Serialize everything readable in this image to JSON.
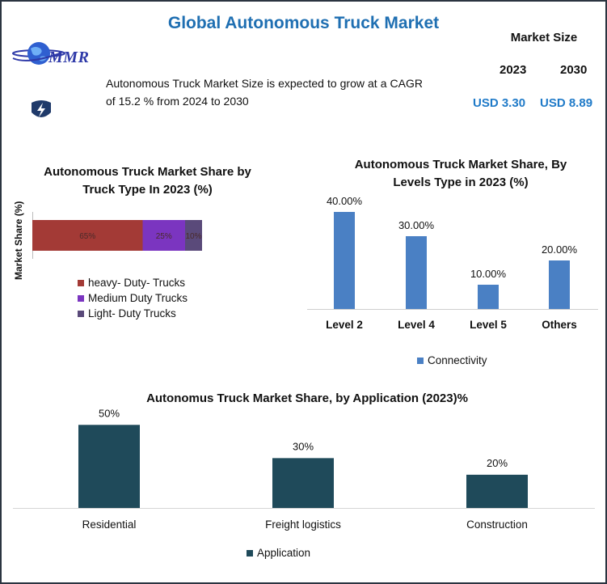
{
  "header": {
    "title": "Global Autonomous Truck Market",
    "logo_text": "MMR",
    "description": "Autonomous Truck Market Size is expected to grow at a CAGR of 15.2 % from 2024 to 2030",
    "market_size_label": "Market Size",
    "year_start": "2023",
    "year_end": "2030",
    "value_start": "USD 3.30",
    "value_end": "USD 8.89",
    "icons": [
      "globe-icon",
      "lightning-icon"
    ]
  },
  "colors": {
    "title": "#1f6fb2",
    "heavy": "#a33a36",
    "medium": "#7b35c0",
    "light": "#5a4a7a",
    "levels_bar": "#4a80c4",
    "application_bar": "#1f4a5a",
    "value_text": "#1f7ac8"
  },
  "chart_data": [
    {
      "type": "bar",
      "orientation": "horizontal-stacked",
      "title": "Autonomous Truck Market Share by Truck Type In 2023 (%)",
      "ylabel": "Market Share (%)",
      "series": [
        {
          "name": "heavy- Duty- Trucks",
          "values": [
            65
          ],
          "label": "65%"
        },
        {
          "name": "Medium Duty Trucks",
          "values": [
            25
          ],
          "label": "25%"
        },
        {
          "name": "Light- Duty Trucks",
          "values": [
            10
          ],
          "label": "10%"
        }
      ],
      "legend": "bottom"
    },
    {
      "type": "bar",
      "title": "Autonomous Truck Market Share, By Levels Type in 2023 (%)",
      "categories": [
        "Level 2",
        "Level 4",
        "Level 5",
        "Others"
      ],
      "series": [
        {
          "name": "Connectivity",
          "values": [
            40,
            30,
            10,
            20
          ]
        }
      ],
      "labels": [
        "40.00%",
        "30.00%",
        "10.00%",
        "20.00%"
      ],
      "ylim": [
        0,
        45
      ],
      "legend": "bottom"
    },
    {
      "type": "bar",
      "title": "Autonomus Truck Market Share, by Application (2023)%",
      "categories": [
        "Residential",
        "Freight logistics",
        "Construction"
      ],
      "series": [
        {
          "name": "Application",
          "values": [
            50,
            30,
            20
          ]
        }
      ],
      "labels": [
        "50%",
        "30%",
        "20%"
      ],
      "ylim": [
        0,
        55
      ],
      "legend": "bottom"
    }
  ]
}
